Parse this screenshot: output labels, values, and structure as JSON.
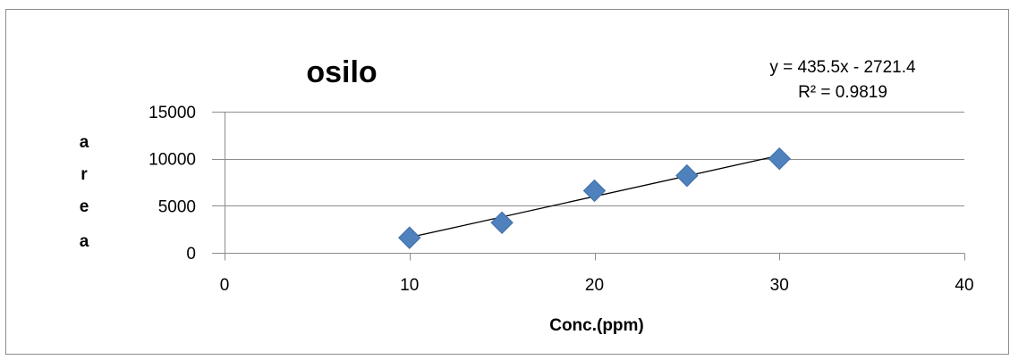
{
  "chart_data": {
    "type": "scatter",
    "title": "osilo",
    "xlabel": "Conc.(ppm)",
    "ylabel": "area",
    "ylabel_chars": [
      "a",
      "r",
      "e",
      "a"
    ],
    "xlim": [
      0,
      40
    ],
    "ylim": [
      0,
      15000
    ],
    "xticks": [
      "0",
      "10",
      "20",
      "30",
      "40"
    ],
    "yticks": [
      "0",
      "5000",
      "10000",
      "15000"
    ],
    "x_tick_values": [
      0,
      10,
      20,
      30,
      40
    ],
    "y_tick_values": [
      0,
      5000,
      10000,
      15000
    ],
    "grid": "horizontal",
    "legend": "none",
    "series": [
      {
        "x": [
          10,
          15,
          20,
          25,
          30
        ],
        "y": [
          1600,
          3200,
          6600,
          8200,
          10000
        ],
        "marker": "diamond",
        "color": "#4F81BD"
      }
    ],
    "trendline": {
      "slope": 435.5,
      "intercept": -2721.4,
      "x_range": [
        10,
        30
      ],
      "color": "#000000",
      "equation": "y = 435.5x - 2721.4",
      "r2_label": "R² = 0.9819"
    }
  }
}
